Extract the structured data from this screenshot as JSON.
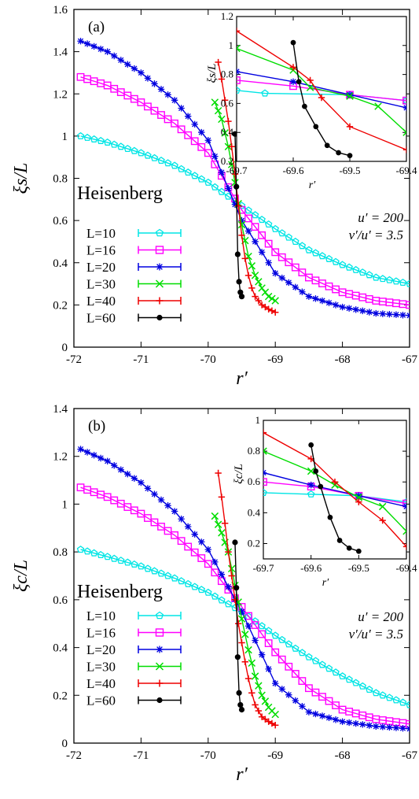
{
  "chart_data": [
    {
      "type": "line",
      "panel_label": "(a)",
      "xlabel": "r′",
      "ylabel": "ξs/L",
      "xlim": [
        -72,
        -67
      ],
      "ylim": [
        0,
        1.6
      ],
      "xticks": [
        "-72",
        "-71",
        "-70",
        "-69",
        "-68",
        "-67"
      ],
      "yticks": [
        "0",
        "0.2",
        "0.4",
        "0.6",
        "0.8",
        "1",
        "1.2",
        "1.4",
        "1.6"
      ],
      "model_label": "Heisenberg",
      "params": [
        "u′ = 200",
        "v′/u′ = 3.5"
      ],
      "legend_position": "left",
      "series": [
        {
          "name": "L=10",
          "color": "#00e5e5",
          "marker": "pentagon",
          "x": [
            -71.9,
            -71.5,
            -71.0,
            -70.5,
            -70.0,
            -69.5,
            -69.0,
            -68.5,
            -68.0,
            -67.5,
            -67.0
          ],
          "y": [
            1.0,
            0.97,
            0.92,
            0.86,
            0.78,
            0.67,
            0.56,
            0.46,
            0.39,
            0.33,
            0.3
          ]
        },
        {
          "name": "L=16",
          "color": "#ff00ff",
          "marker": "square",
          "x": [
            -71.9,
            -71.5,
            -71.0,
            -70.5,
            -70.0,
            -69.5,
            -69.0,
            -68.5,
            -68.0,
            -67.5,
            -67.0
          ],
          "y": [
            1.28,
            1.24,
            1.16,
            1.06,
            0.92,
            0.65,
            0.45,
            0.33,
            0.26,
            0.22,
            0.2
          ]
        },
        {
          "name": "L=20",
          "color": "#0000e0",
          "marker": "asterisk",
          "x": [
            -71.9,
            -71.5,
            -71.0,
            -70.5,
            -70.0,
            -69.5,
            -69.0,
            -68.5,
            -68.0,
            -67.5,
            -67.0
          ],
          "y": [
            1.45,
            1.4,
            1.3,
            1.17,
            0.98,
            0.6,
            0.35,
            0.24,
            0.19,
            0.16,
            0.15
          ]
        },
        {
          "name": "L=30",
          "color": "#00dd00",
          "marker": "x",
          "x": [
            -69.9,
            -69.8,
            -69.7,
            -69.6,
            -69.5,
            -69.4,
            -69.3,
            -69.2,
            -69.1,
            -69.0
          ],
          "y": [
            1.16,
            1.08,
            0.95,
            0.78,
            0.58,
            0.43,
            0.34,
            0.28,
            0.24,
            0.22
          ]
        },
        {
          "name": "L=40",
          "color": "#ee0000",
          "marker": "plus",
          "x": [
            -69.85,
            -69.8,
            -69.75,
            -69.7,
            -69.65,
            -69.6,
            -69.55,
            -69.5,
            -69.45,
            -69.4,
            -69.35,
            -69.3,
            -69.2,
            -69.1,
            -69.0
          ],
          "y": [
            1.35,
            1.27,
            1.17,
            1.07,
            0.95,
            0.82,
            0.67,
            0.53,
            0.42,
            0.34,
            0.28,
            0.24,
            0.2,
            0.18,
            0.165
          ]
        },
        {
          "name": "L=60",
          "color": "#000000",
          "marker": "circle",
          "x": [
            -69.6,
            -69.58,
            -69.56,
            -69.54,
            -69.52,
            -69.5
          ],
          "y": [
            1.01,
            0.76,
            0.44,
            0.31,
            0.26,
            0.24
          ]
        }
      ],
      "inset": {
        "xlabel": "r′",
        "ylabel": "ξs/L",
        "xlim": [
          -69.7,
          -69.4
        ],
        "ylim": [
          0.2,
          1.2
        ],
        "xticks": [
          "-69.7",
          "-69.6",
          "-69.5",
          "-69.4"
        ],
        "yticks": [
          "0.2",
          "0.4",
          "0.6",
          "0.8",
          "1",
          "1.2"
        ],
        "series": [
          {
            "name": "L=10",
            "x": [
              -69.7,
              -69.65,
              -69.5,
              -69.4
            ],
            "y": [
              0.69,
              0.67,
              0.66,
              0.62
            ]
          },
          {
            "name": "L=16",
            "x": [
              -69.7,
              -69.6,
              -69.5,
              -69.4
            ],
            "y": [
              0.76,
              0.72,
              0.66,
              0.62
            ]
          },
          {
            "name": "L=20",
            "x": [
              -69.7,
              -69.6,
              -69.5,
              -69.4
            ],
            "y": [
              0.82,
              0.75,
              0.66,
              0.57
            ]
          },
          {
            "name": "L=30",
            "x": [
              -69.7,
              -69.6,
              -69.57,
              -69.5,
              -69.45,
              -69.4
            ],
            "y": [
              0.98,
              0.83,
              0.71,
              0.65,
              0.58,
              0.4
            ]
          },
          {
            "name": "L=40",
            "x": [
              -69.7,
              -69.6,
              -69.57,
              -69.55,
              -69.5,
              -69.4
            ],
            "y": [
              1.1,
              0.85,
              0.76,
              0.64,
              0.44,
              0.28
            ]
          },
          {
            "name": "L=60",
            "x": [
              -69.6,
              -69.59,
              -69.58,
              -69.56,
              -69.54,
              -69.52,
              -69.5
            ],
            "y": [
              1.02,
              0.75,
              0.58,
              0.44,
              0.31,
              0.26,
              0.24
            ]
          }
        ]
      }
    },
    {
      "type": "line",
      "panel_label": "(b)",
      "xlabel": "r′",
      "ylabel": "ξc/L",
      "xlim": [
        -72,
        -67
      ],
      "ylim": [
        0,
        1.4
      ],
      "xticks": [
        "-72",
        "-71",
        "-70",
        "-69",
        "-68",
        "-67"
      ],
      "yticks": [
        "0",
        "0.2",
        "0.4",
        "0.6",
        "0.8",
        "1",
        "1.2",
        "1.4"
      ],
      "model_label": "Heisenberg",
      "params": [
        "u′ = 200",
        "v′/u′ = 3.5"
      ],
      "legend_position": "left",
      "series": [
        {
          "name": "L=10",
          "color": "#00e5e5",
          "marker": "pentagon",
          "x": [
            -71.9,
            -71.5,
            -71.0,
            -70.5,
            -70.0,
            -69.5,
            -69.0,
            -68.5,
            -68.0,
            -67.5,
            -67.0
          ],
          "y": [
            0.81,
            0.78,
            0.74,
            0.69,
            0.63,
            0.55,
            0.45,
            0.36,
            0.28,
            0.21,
            0.16
          ]
        },
        {
          "name": "L=16",
          "color": "#ff00ff",
          "marker": "square",
          "x": [
            -71.9,
            -71.5,
            -71.0,
            -70.5,
            -70.0,
            -69.5,
            -69.0,
            -68.5,
            -68.0,
            -67.5,
            -67.0
          ],
          "y": [
            1.07,
            1.03,
            0.96,
            0.87,
            0.75,
            0.57,
            0.38,
            0.23,
            0.14,
            0.1,
            0.08
          ]
        },
        {
          "name": "L=20",
          "color": "#0000e0",
          "marker": "asterisk",
          "x": [
            -71.9,
            -71.5,
            -71.0,
            -70.5,
            -70.0,
            -69.5,
            -69.0,
            -68.5,
            -68.0,
            -67.5,
            -67.0
          ],
          "y": [
            1.23,
            1.18,
            1.09,
            0.97,
            0.81,
            0.55,
            0.25,
            0.13,
            0.09,
            0.07,
            0.06
          ]
        },
        {
          "name": "L=30",
          "color": "#00dd00",
          "marker": "x",
          "x": [
            -69.9,
            -69.8,
            -69.7,
            -69.6,
            -69.5,
            -69.4,
            -69.3,
            -69.2,
            -69.1,
            -69.0
          ],
          "y": [
            0.95,
            0.88,
            0.8,
            0.66,
            0.52,
            0.39,
            0.28,
            0.2,
            0.15,
            0.12
          ]
        },
        {
          "name": "L=40",
          "color": "#ee0000",
          "marker": "plus",
          "x": [
            -69.85,
            -69.8,
            -69.75,
            -69.7,
            -69.65,
            -69.6,
            -69.55,
            -69.5,
            -69.45,
            -69.4,
            -69.35,
            -69.3,
            -69.2,
            -69.1,
            -69.0
          ],
          "y": [
            1.13,
            1.03,
            0.92,
            0.8,
            0.7,
            0.6,
            0.5,
            0.42,
            0.34,
            0.27,
            0.21,
            0.16,
            0.11,
            0.09,
            0.075
          ]
        },
        {
          "name": "L=60",
          "color": "#000000",
          "marker": "circle",
          "x": [
            -69.6,
            -69.58,
            -69.56,
            -69.54,
            -69.52,
            -69.5
          ],
          "y": [
            0.84,
            0.65,
            0.36,
            0.21,
            0.16,
            0.14
          ]
        }
      ],
      "inset": {
        "xlabel": "r′",
        "ylabel": "ξc/L",
        "xlim": [
          -69.7,
          -69.4
        ],
        "ylim": [
          0.1,
          1.0
        ],
        "xticks": [
          "-69.7",
          "-69.6",
          "-69.5",
          "-69.4"
        ],
        "yticks": [
          "0.2",
          "0.4",
          "0.6",
          "0.8",
          "1"
        ],
        "series": [
          {
            "name": "L=10",
            "x": [
              -69.7,
              -69.6,
              -69.5,
              -69.4
            ],
            "y": [
              0.53,
              0.52,
              0.51,
              0.47
            ]
          },
          {
            "name": "L=16",
            "x": [
              -69.7,
              -69.6,
              -69.5,
              -69.4
            ],
            "y": [
              0.6,
              0.57,
              0.51,
              0.46
            ]
          },
          {
            "name": "L=20",
            "x": [
              -69.7,
              -69.6,
              -69.5,
              -69.4
            ],
            "y": [
              0.66,
              0.58,
              0.51,
              0.44
            ]
          },
          {
            "name": "L=30",
            "x": [
              -69.7,
              -69.6,
              -69.55,
              -69.5,
              -69.45,
              -69.4
            ],
            "y": [
              0.8,
              0.67,
              0.58,
              0.5,
              0.44,
              0.28
            ]
          },
          {
            "name": "L=40",
            "x": [
              -69.7,
              -69.6,
              -69.55,
              -69.5,
              -69.45,
              -69.4
            ],
            "y": [
              0.92,
              0.75,
              0.6,
              0.47,
              0.35,
              0.18
            ]
          },
          {
            "name": "L=60",
            "x": [
              -69.6,
              -69.59,
              -69.58,
              -69.56,
              -69.54,
              -69.52,
              -69.5
            ],
            "y": [
              0.84,
              0.67,
              0.57,
              0.37,
              0.22,
              0.17,
              0.15
            ]
          }
        ]
      }
    }
  ]
}
